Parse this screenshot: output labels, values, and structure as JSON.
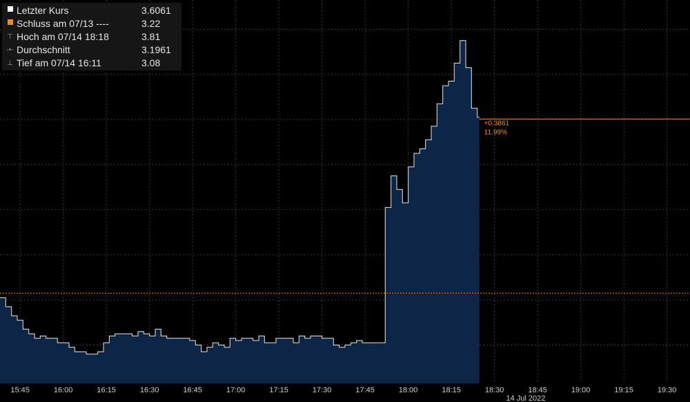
{
  "legend": {
    "items": [
      {
        "label": "Letzter Kurs",
        "value": "3.6061",
        "marker": "square",
        "color": "#ffffff"
      },
      {
        "label": "Schluss am 07/13 ----",
        "value": "3.22",
        "marker": "square",
        "color": "#f08c1e"
      },
      {
        "label": "Hoch am 07/14 18:18",
        "value": "3.81",
        "marker": "T",
        "color": "#9a9a9a"
      },
      {
        "label": "Durchschnitt",
        "value": "3.1961",
        "marker": "dot",
        "color": "#9a9a9a"
      },
      {
        "label": "Tief am 07/14 16:11",
        "value": "3.08",
        "marker": "bottom-T",
        "color": "#9a9a9a"
      }
    ]
  },
  "annotation": {
    "change": "+0.3861",
    "percent": "11.99%"
  },
  "chart_data": {
    "type": "area",
    "x_tick_labels": [
      "15:45",
      "16:00",
      "16:15",
      "16:30",
      "16:45",
      "17:00",
      "17:15",
      "17:30",
      "17:45",
      "18:00",
      "18:15",
      "18:30",
      "18:45",
      "19:00",
      "19:15",
      "19:30"
    ],
    "date_label": "14 Jul 2022",
    "x_start": "15:38",
    "x_end": "19:38",
    "ylim": [
      3.02,
      3.87
    ],
    "reference_line": {
      "label": "Schluss am 07/13",
      "value": 3.22,
      "style": "dotted",
      "color": "#f08c1e"
    },
    "last_price_line": {
      "value": 3.6061,
      "color": "#f08c1e"
    },
    "grid": true,
    "colors": {
      "area_fill": "#0d2547",
      "line": "#e8e8e8",
      "grid": "#3a3a3a",
      "reference": "#f08c1e"
    },
    "series": [
      {
        "name": "Letzter Kurs",
        "x": [
          "15:38",
          "15:40",
          "15:42",
          "15:44",
          "15:46",
          "15:48",
          "15:50",
          "15:52",
          "15:54",
          "15:56",
          "15:58",
          "16:00",
          "16:02",
          "16:04",
          "16:06",
          "16:08",
          "16:10",
          "16:12",
          "16:14",
          "16:16",
          "16:18",
          "16:20",
          "16:22",
          "16:24",
          "16:26",
          "16:28",
          "16:30",
          "16:32",
          "16:34",
          "16:36",
          "16:38",
          "16:40",
          "16:42",
          "16:44",
          "16:46",
          "16:48",
          "16:50",
          "16:52",
          "16:54",
          "16:56",
          "16:58",
          "17:00",
          "17:02",
          "17:04",
          "17:06",
          "17:08",
          "17:10",
          "17:12",
          "17:14",
          "17:16",
          "17:18",
          "17:20",
          "17:22",
          "17:24",
          "17:26",
          "17:28",
          "17:30",
          "17:32",
          "17:34",
          "17:36",
          "17:38",
          "17:40",
          "17:42",
          "17:44",
          "17:46",
          "17:48",
          "17:50",
          "17:52",
          "17:54",
          "17:56",
          "17:58",
          "18:00",
          "18:02",
          "18:04",
          "18:06",
          "18:08",
          "18:10",
          "18:12",
          "18:14",
          "18:16",
          "18:18",
          "18:20",
          "18:22",
          "18:24"
        ],
        "values": [
          3.21,
          3.19,
          3.17,
          3.16,
          3.14,
          3.13,
          3.12,
          3.125,
          3.12,
          3.12,
          3.11,
          3.11,
          3.1,
          3.09,
          3.09,
          3.085,
          3.085,
          3.09,
          3.11,
          3.125,
          3.13,
          3.13,
          3.13,
          3.125,
          3.135,
          3.13,
          3.125,
          3.14,
          3.125,
          3.12,
          3.12,
          3.12,
          3.12,
          3.115,
          3.105,
          3.09,
          3.1,
          3.11,
          3.105,
          3.1,
          3.12,
          3.115,
          3.12,
          3.12,
          3.115,
          3.125,
          3.11,
          3.11,
          3.12,
          3.12,
          3.12,
          3.11,
          3.125,
          3.12,
          3.125,
          3.125,
          3.12,
          3.12,
          3.105,
          3.1,
          3.105,
          3.11,
          3.115,
          3.11,
          3.11,
          3.11,
          3.11,
          3.41,
          3.48,
          3.45,
          3.42,
          3.5,
          3.53,
          3.54,
          3.56,
          3.59,
          3.64,
          3.68,
          3.69,
          3.73,
          3.78,
          3.72,
          3.63,
          3.61
        ]
      }
    ]
  }
}
